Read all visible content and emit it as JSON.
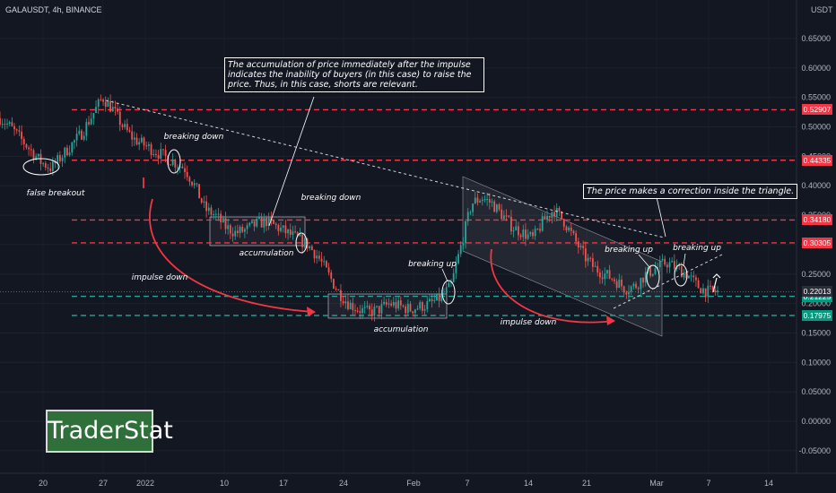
{
  "header": {
    "symbol": "GALAUSDT, 4h, BINANCE",
    "currency": "USDT"
  },
  "brand": {
    "logo_text": "TraderStat"
  },
  "notes": {
    "accumulation_note": "The accumulation of price immediately after the impulse indicates the inability of buyers (in this case) to raise the price. Thus, in this case, shorts are relevant.",
    "triangle_note": "The price makes a correction inside the triangle."
  },
  "colors": {
    "background": "#131722",
    "up_candle": "#26a69a",
    "down_candle": "#ef5350",
    "level_line": "#f23645",
    "support_line": "#26a69a",
    "arrow": "#f23645",
    "annotation": "#ffffff",
    "price_tag_red": "#f23645",
    "price_tag_teal": "#089981"
  },
  "chart_data": {
    "type": "candlestick",
    "x_ticks": [
      "20",
      "27",
      "2022",
      "10",
      "17",
      "24",
      "Feb",
      "7",
      "14",
      "21",
      "Mar",
      "7",
      "14"
    ],
    "y_ticks": [
      "0.65000",
      "0.60000",
      "0.55000",
      "0.50000",
      "0.45000",
      "0.40000",
      "0.35000",
      "0.30000",
      "0.25000",
      "0.20000",
      "0.15000",
      "0.10000",
      "0.05000",
      "0.00000",
      "-0.05000"
    ],
    "ylim": [
      -0.07,
      0.68
    ],
    "price_series_path": [
      0.515,
      0.5,
      0.48,
      0.46,
      0.44,
      0.43,
      0.45,
      0.47,
      0.49,
      0.52,
      0.55,
      0.53,
      0.5,
      0.48,
      0.47,
      0.46,
      0.45,
      0.44,
      0.43,
      0.4,
      0.36,
      0.35,
      0.33,
      0.32,
      0.325,
      0.335,
      0.34,
      0.33,
      0.32,
      0.31,
      0.3,
      0.28,
      0.25,
      0.22,
      0.2,
      0.19,
      0.185,
      0.19,
      0.2,
      0.195,
      0.19,
      0.195,
      0.2,
      0.21,
      0.23,
      0.3,
      0.37,
      0.38,
      0.37,
      0.35,
      0.33,
      0.32,
      0.31,
      0.34,
      0.36,
      0.34,
      0.31,
      0.28,
      0.26,
      0.25,
      0.24,
      0.225,
      0.23,
      0.25,
      0.26,
      0.27,
      0.26,
      0.25,
      0.23,
      0.22,
      0.22
    ],
    "levels": [
      {
        "label": "0.52907",
        "value": 0.52907,
        "style": "dashed-red"
      },
      {
        "label": "0.44335",
        "value": 0.44335,
        "style": "dashed-red"
      },
      {
        "label": "0.34180",
        "value": 0.3418,
        "style": "dashed-red"
      },
      {
        "label": "0.30305",
        "value": 0.30305,
        "style": "dashed-red"
      },
      {
        "label": "0.21225",
        "value": 0.21225,
        "style": "dashed-teal"
      },
      {
        "label": "0.17975",
        "value": 0.17975,
        "style": "dashed-teal"
      }
    ],
    "current_price": {
      "label": "0.22013",
      "value": 0.22013
    },
    "annotations": [
      "false breakout",
      "breaking down",
      "breaking down",
      "accumulation",
      "impulse down",
      "accumulation",
      "breaking up",
      "impulse down",
      "breaking up",
      "breaking up"
    ]
  }
}
